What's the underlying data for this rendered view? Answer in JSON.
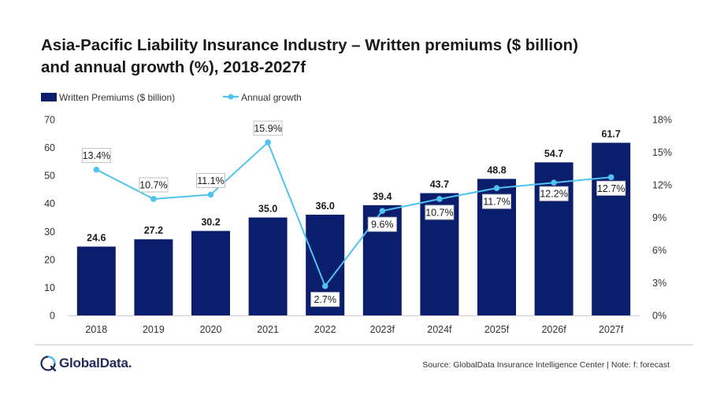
{
  "title_lines": [
    "Asia-Pacific Liability Insurance Industry – Written premiums ($ billion)",
    "and annual growth (%), 2018-2027f"
  ],
  "footer": {
    "logo_text": "GlobalData.",
    "source": "Source: GlobalData Insurance Intelligence Center | Note: f: forecast"
  },
  "colors": {
    "bar": "#0b1e6e",
    "line": "#4fc3ef",
    "axis_text": "#333333"
  },
  "chart_data": {
    "type": "bar",
    "categories": [
      "2018",
      "2019",
      "2020",
      "2021",
      "2022",
      "2023f",
      "2024f",
      "2025f",
      "2026f",
      "2027f"
    ],
    "series": [
      {
        "name": "Written Premiums ($ billion)",
        "type": "bar",
        "axis": "left",
        "values": [
          24.6,
          27.2,
          30.2,
          35.0,
          36.0,
          39.4,
          43.7,
          48.8,
          54.7,
          61.7
        ],
        "labels": [
          "24.6",
          "27.2",
          "30.2",
          "35.0",
          "36.0",
          "39.4",
          "43.7",
          "48.8",
          "54.7",
          "61.7"
        ]
      },
      {
        "name": "Annual growth",
        "type": "line",
        "axis": "right",
        "values": [
          13.4,
          10.7,
          11.1,
          15.9,
          2.7,
          9.6,
          10.7,
          11.7,
          12.2,
          12.7
        ],
        "labels": [
          "13.4%",
          "10.7%",
          "11.1%",
          "15.9%",
          "2.7%",
          "9.6%",
          "10.7%",
          "11.7%",
          "12.2%",
          "12.7%"
        ]
      }
    ],
    "y_left": {
      "min": 0,
      "max": 70,
      "ticks": [
        "0",
        "10",
        "20",
        "30",
        "40",
        "50",
        "60",
        "70"
      ]
    },
    "y_right": {
      "min": 0,
      "max": 18,
      "ticks": [
        "0%",
        "3%",
        "6%",
        "9%",
        "12%",
        "15%",
        "18%"
      ]
    },
    "legend": {
      "position": "top-left"
    },
    "grid": false
  }
}
